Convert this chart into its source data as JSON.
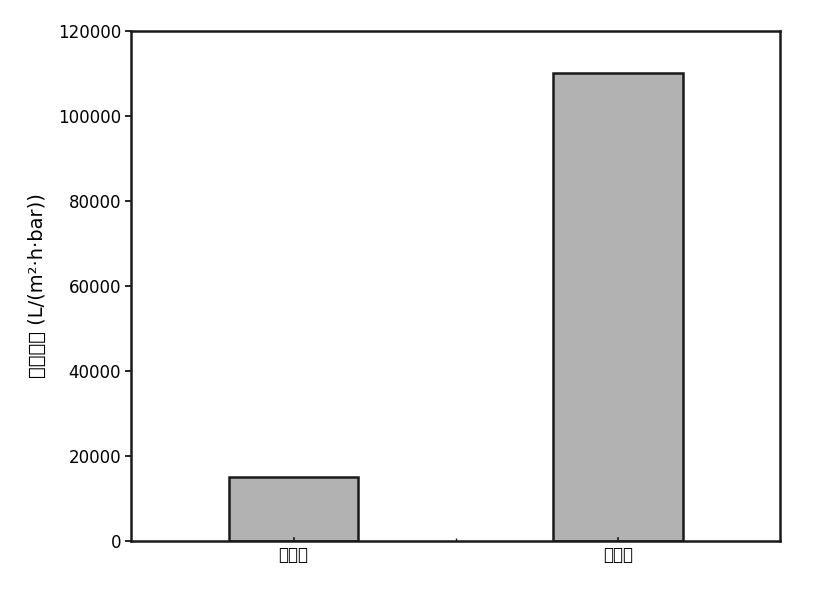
{
  "categories": [
    "改性前",
    "改性后"
  ],
  "values": [
    15000,
    110000
  ],
  "bar_color": "#b2b2b2",
  "bar_edgecolor": "#1a1a1a",
  "ylabel": "纯水通量 (L/(m²·h·bar))",
  "ylim": [
    0,
    120000
  ],
  "yticks": [
    0,
    20000,
    40000,
    60000,
    80000,
    100000,
    120000
  ],
  "background_color": "#ffffff",
  "bar_width": 0.35,
  "ylabel_fontsize": 14,
  "tick_fontsize": 12,
  "linewidth": 1.8,
  "figsize": [
    8.21,
    6.15
  ],
  "dpi": 100
}
